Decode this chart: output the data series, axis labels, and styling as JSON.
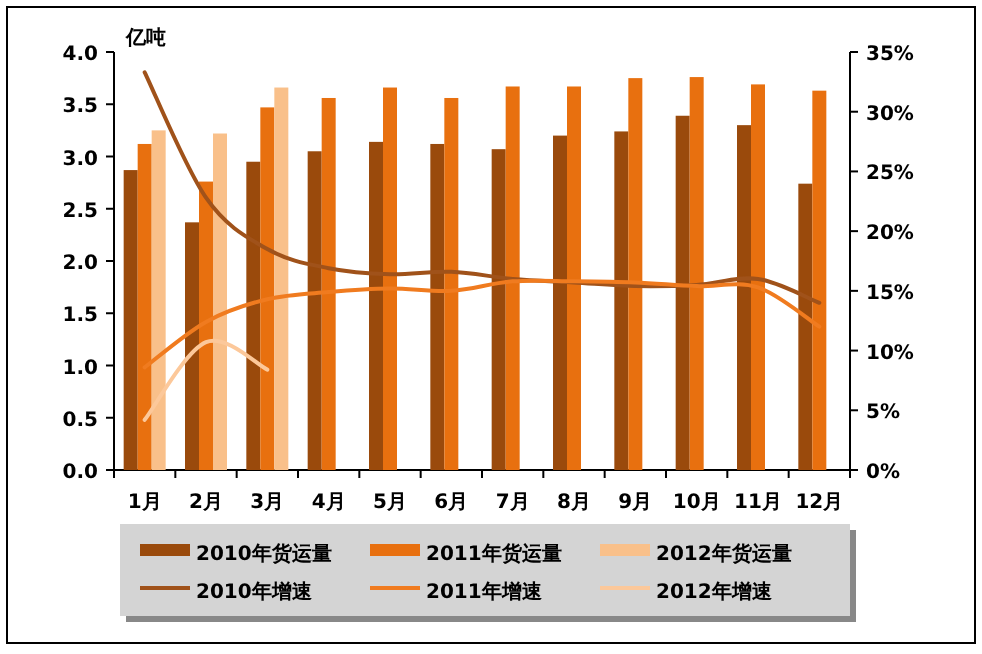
{
  "chart_data": {
    "type": "bar",
    "ylabel": "亿吨",
    "categories": [
      "1月",
      "2月",
      "3月",
      "4月",
      "5月",
      "6月",
      "7月",
      "8月",
      "9月",
      "10月",
      "11月",
      "12月"
    ],
    "series": [
      {
        "name": "2010年货运量",
        "color": "#9a4a0c",
        "values": [
          2.87,
          2.37,
          2.95,
          3.05,
          3.14,
          3.12,
          3.07,
          3.2,
          3.24,
          3.39,
          3.3,
          2.74
        ]
      },
      {
        "name": "2011年货运量",
        "color": "#e8700f",
        "values": [
          3.12,
          2.76,
          3.47,
          3.56,
          3.66,
          3.56,
          3.67,
          3.67,
          3.75,
          3.76,
          3.69,
          3.63
        ]
      },
      {
        "name": "2012年货运量",
        "color": "#f9c08a",
        "values": [
          3.25,
          3.22,
          3.66,
          null,
          null,
          null,
          null,
          null,
          null,
          null,
          null,
          null
        ]
      },
      {
        "name": "2010年增速",
        "type": "line",
        "axis": "y2",
        "color": "#a0521a",
        "values": [
          33.3,
          22.8,
          18.5,
          16.9,
          16.4,
          16.6,
          16.0,
          15.7,
          15.4,
          15.5,
          16.0,
          14.0
        ]
      },
      {
        "name": "2011年增速",
        "type": "line",
        "axis": "y2",
        "color": "#f07b1f",
        "values": [
          8.6,
          12.4,
          14.3,
          14.9,
          15.2,
          15.0,
          15.8,
          15.8,
          15.7,
          15.4,
          15.3,
          12.0
        ]
      },
      {
        "name": "2012年增速",
        "type": "line",
        "axis": "y2",
        "color": "#fcc89a",
        "values": [
          4.2,
          10.7,
          8.4,
          null,
          null,
          null,
          null,
          null,
          null,
          null,
          null,
          null
        ]
      }
    ],
    "ylim": [
      0,
      4
    ],
    "yticks": [
      {
        "value": 0,
        "label": "0.0"
      },
      {
        "value": 0.5,
        "label": "0.5"
      },
      {
        "value": 1,
        "label": "1.0"
      },
      {
        "value": 1.5,
        "label": "1.5"
      },
      {
        "value": 2,
        "label": "2.0"
      },
      {
        "value": 2.5,
        "label": "2.5"
      },
      {
        "value": 3,
        "label": "3.0"
      },
      {
        "value": 3.5,
        "label": "3.5"
      },
      {
        "value": 4,
        "label": "4.0"
      }
    ],
    "y2lim": [
      0,
      35
    ],
    "y2ticks": [
      {
        "value": 0,
        "label": "0%"
      },
      {
        "value": 5,
        "label": "5%"
      },
      {
        "value": 10,
        "label": "10%"
      },
      {
        "value": 15,
        "label": "15%"
      },
      {
        "value": 20,
        "label": "20%"
      },
      {
        "value": 25,
        "label": "25%"
      },
      {
        "value": 30,
        "label": "30%"
      },
      {
        "value": 35,
        "label": "35%"
      }
    ],
    "legend": "bottom"
  }
}
